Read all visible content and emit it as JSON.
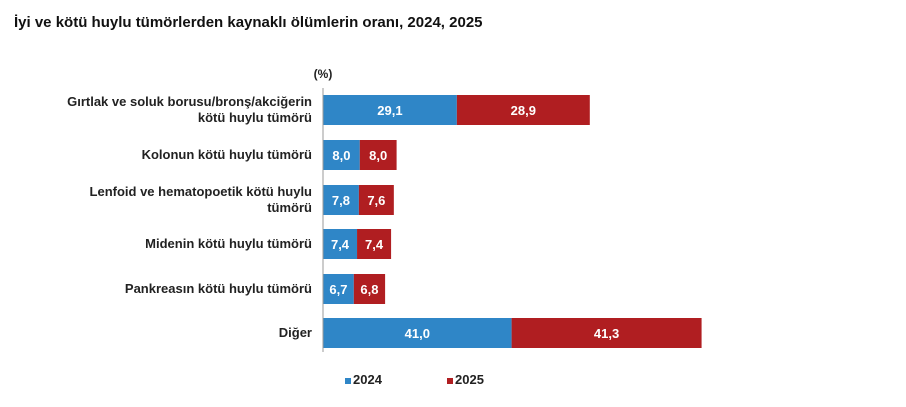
{
  "title": "İyi ve kötü huylu tümörlerden kaynaklı ölümlerin oranı, 2024, 2025",
  "chart_data": {
    "type": "bar",
    "stacked": true,
    "orientation": "horizontal",
    "unit_label": "(%)",
    "categories": [
      [
        "Gırtlak ve soluk borusu/bronş/akciğerin",
        "kötü huylu tümörü"
      ],
      [
        "Kolonun kötü huylu tümörü"
      ],
      [
        "Lenfoid ve hematopoetik kötü huylu",
        "tümörü"
      ],
      [
        "Midenin kötü huylu tümörü"
      ],
      [
        "Pankreasın kötü huylu tümörü"
      ],
      [
        "Diğer"
      ]
    ],
    "series": [
      {
        "name": "2024",
        "color": "#2f86c7",
        "values": [
          29.1,
          8.0,
          7.8,
          7.4,
          6.7,
          41.0
        ],
        "labels": [
          "29,1",
          "8,0",
          "7,8",
          "7,4",
          "6,7",
          "41,0"
        ]
      },
      {
        "name": "2025",
        "color": "#b01e21",
        "values": [
          28.9,
          8.0,
          7.6,
          7.4,
          6.8,
          41.3
        ],
        "labels": [
          "28,9",
          "8,0",
          "7,6",
          "7,4",
          "6,8",
          "41,3"
        ]
      }
    ],
    "legend_position": "bottom",
    "grid": false,
    "data_labels": "inside"
  }
}
